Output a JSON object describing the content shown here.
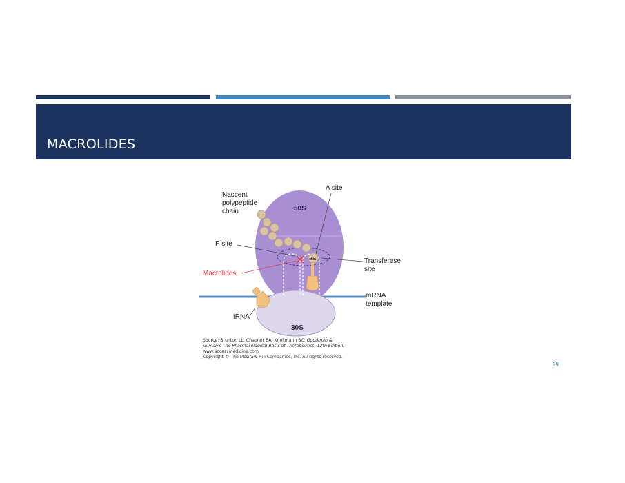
{
  "slide": {
    "title": "MACROLIDES",
    "page_number": "79"
  },
  "colors": {
    "bar_navy": "#1c3360",
    "bar_blue": "#3a87c0",
    "bar_gray": "#8d939d",
    "title_band": "#1c3360",
    "subunit_50s": "#a88fd4",
    "subunit_30s": "#ddd7ec",
    "bead": "#dcc3a4",
    "trna": "#f2c07d",
    "mrna": "#5c8fbf",
    "macrolide_label": "#e8333b"
  },
  "diagram": {
    "labels": {
      "nascent": "Nascent",
      "polypeptide": "polypeptide",
      "chain": "chain",
      "a_site": "A site",
      "sub50": "50S",
      "p_site": "P site",
      "aa": "aa",
      "transferase": "Transferase",
      "site": "site",
      "macrolides": "Macrolides",
      "mrna": "mRNA",
      "template": "template",
      "trna": "tRNA",
      "sub30": "30S"
    },
    "source": {
      "line1_prefix": "Source: Brunton LL, Chabner BA, Knollmann BC: ",
      "line1_italic": "Goodman &",
      "line2_italic": "Gilman's The Pharmacological Basis of Therapeutics, 12th Edition:",
      "line3": "www.accessmedicine.com",
      "line4": "Copyright © The McGraw-Hill Companies, Inc. All rights reserved."
    }
  }
}
